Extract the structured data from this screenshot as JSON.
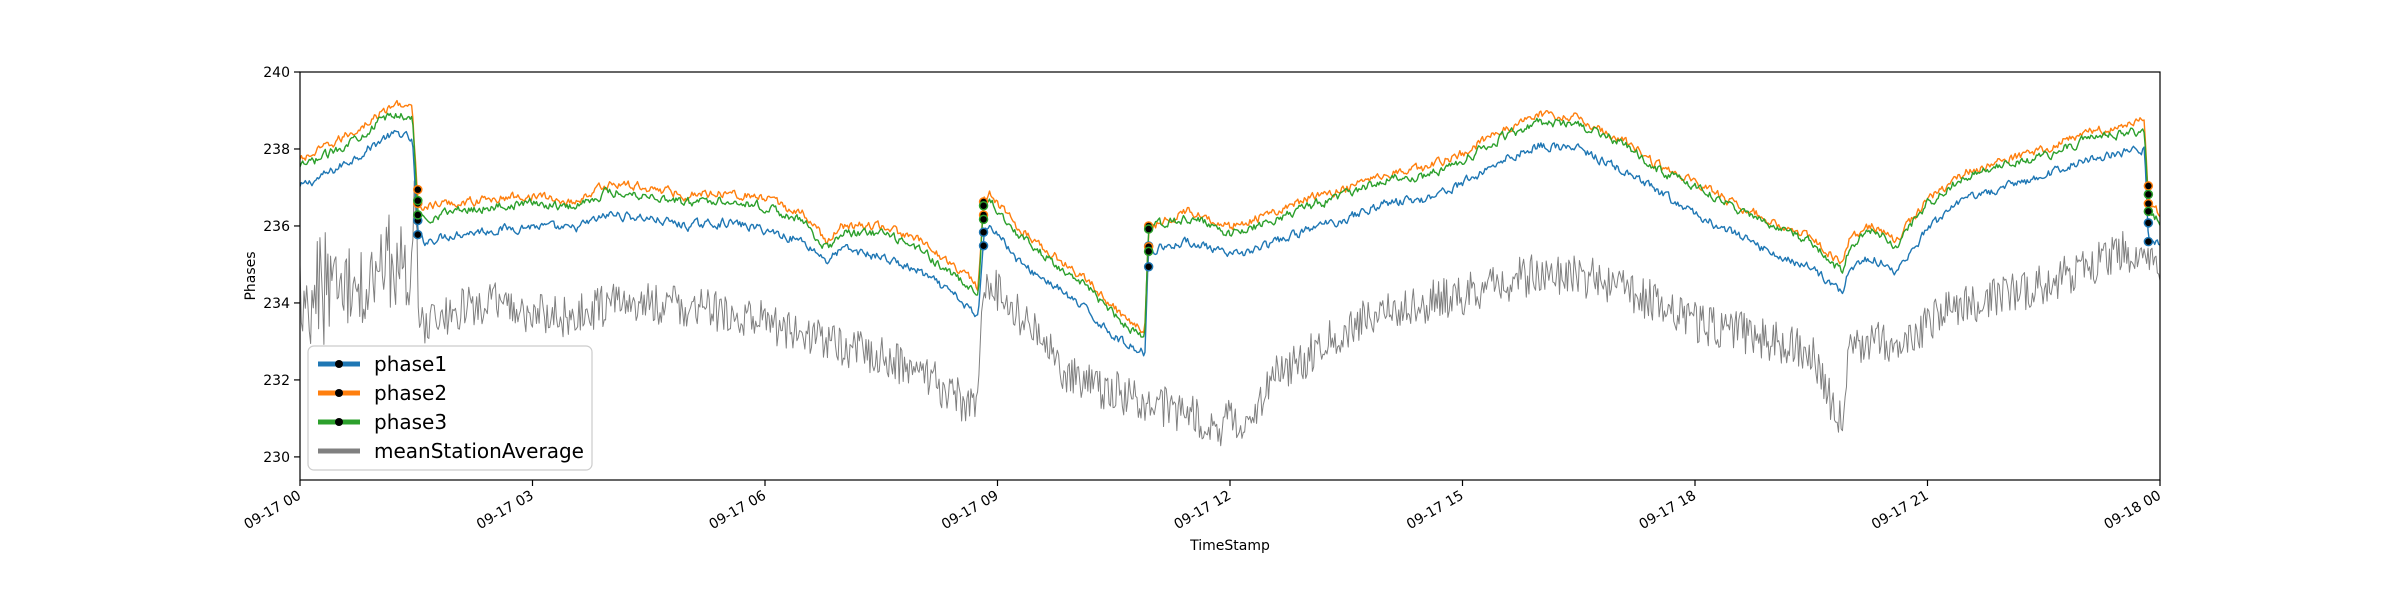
{
  "chart_data": {
    "type": "line",
    "title": "",
    "xlabel": "TimeStamp",
    "ylabel": "Phases",
    "x_range": [
      "09-17 00:00",
      "09-18 00:00"
    ],
    "ylim": [
      229.4,
      240
    ],
    "x_ticks": [
      {
        "hour": 0,
        "label": "09-17 00"
      },
      {
        "hour": 3,
        "label": "09-17 03"
      },
      {
        "hour": 6,
        "label": "09-17 06"
      },
      {
        "hour": 9,
        "label": "09-17 09"
      },
      {
        "hour": 12,
        "label": "09-17 12"
      },
      {
        "hour": 15,
        "label": "09-17 15"
      },
      {
        "hour": 18,
        "label": "09-17 18"
      },
      {
        "hour": 21,
        "label": "09-17 21"
      },
      {
        "hour": 24,
        "label": "09-18 00"
      }
    ],
    "y_ticks": [
      230,
      232,
      234,
      236,
      238,
      240
    ],
    "grid": false,
    "legend": "lower-left",
    "series": [
      {
        "name": "phase1",
        "color": "#1f77b4",
        "x": [
          0,
          0.4,
          0.8,
          1.1,
          1.3,
          1.45,
          1.52,
          1.6,
          2,
          2.5,
          3,
          3.5,
          4,
          4.5,
          5,
          5.5,
          6,
          6.5,
          6.8,
          7,
          7.5,
          8,
          8.5,
          8.75,
          8.82,
          8.9,
          9.3,
          9.7,
          10.2,
          10.6,
          10.9,
          10.95,
          11,
          11.5,
          12,
          12.5,
          13,
          13.5,
          14,
          14.5,
          15,
          15.5,
          16,
          16.5,
          17,
          17.5,
          18,
          18.5,
          19,
          19.5,
          19.9,
          20,
          20.3,
          20.6,
          21,
          21.5,
          22,
          22.5,
          23,
          23.5,
          23.8,
          23.85,
          24
        ],
        "y": [
          237.0,
          237.4,
          237.9,
          238.3,
          238.4,
          238.2,
          235.8,
          235.6,
          235.8,
          235.9,
          236.0,
          235.9,
          236.3,
          236.2,
          236.0,
          236.1,
          235.9,
          235.6,
          235.1,
          235.4,
          235.2,
          234.8,
          234.1,
          233.6,
          235.8,
          236.1,
          235.0,
          234.5,
          233.7,
          233.0,
          232.7,
          235.5,
          235.4,
          235.6,
          235.2,
          235.5,
          235.9,
          236.2,
          236.6,
          236.7,
          237.1,
          237.7,
          238.1,
          238.0,
          237.5,
          236.9,
          236.3,
          235.8,
          235.3,
          234.9,
          234.3,
          234.9,
          235.2,
          234.8,
          235.9,
          236.7,
          237.0,
          237.3,
          237.7,
          237.9,
          238.0,
          235.6,
          235.5
        ]
      },
      {
        "name": "phase2",
        "color": "#ff7f0e",
        "x": [
          0,
          0.4,
          0.8,
          1.1,
          1.3,
          1.45,
          1.52,
          1.6,
          2,
          2.5,
          3,
          3.5,
          4,
          4.5,
          5,
          5.5,
          6,
          6.5,
          6.8,
          7,
          7.5,
          8,
          8.5,
          8.75,
          8.82,
          8.9,
          9.3,
          9.7,
          10.2,
          10.6,
          10.9,
          10.95,
          11,
          11.5,
          12,
          12.5,
          13,
          13.5,
          14,
          14.5,
          15,
          15.5,
          16,
          16.5,
          17,
          17.5,
          18,
          18.5,
          19,
          19.5,
          19.9,
          20,
          20.3,
          20.6,
          21,
          21.5,
          22,
          22.5,
          23,
          23.5,
          23.8,
          23.85,
          24
        ],
        "y": [
          237.7,
          238.1,
          238.6,
          239.0,
          239.2,
          239.0,
          236.6,
          236.5,
          236.6,
          236.7,
          236.8,
          236.6,
          237.1,
          237.0,
          236.8,
          236.9,
          236.7,
          236.3,
          235.6,
          236.0,
          236.0,
          235.6,
          234.9,
          234.4,
          236.6,
          236.8,
          235.9,
          235.3,
          234.5,
          233.7,
          233.3,
          236.0,
          236.0,
          236.4,
          236.0,
          236.3,
          236.7,
          237.0,
          237.4,
          237.5,
          237.9,
          238.5,
          238.9,
          238.8,
          238.3,
          237.6,
          237.1,
          236.6,
          236.1,
          235.7,
          235.0,
          235.7,
          236.0,
          235.6,
          236.7,
          237.4,
          237.7,
          238.0,
          238.4,
          238.6,
          238.8,
          236.6,
          236.3
        ]
      },
      {
        "name": "phase3",
        "color": "#2ca02c",
        "x": [
          0,
          0.4,
          0.8,
          1.1,
          1.3,
          1.45,
          1.52,
          1.6,
          2,
          2.5,
          3,
          3.5,
          4,
          4.5,
          5,
          5.5,
          6,
          6.5,
          6.8,
          7,
          7.5,
          8,
          8.5,
          8.75,
          8.82,
          8.9,
          9.3,
          9.7,
          10.2,
          10.6,
          10.9,
          10.95,
          11,
          11.5,
          12,
          12.5,
          13,
          13.5,
          14,
          14.5,
          15,
          15.5,
          16,
          16.5,
          17,
          17.5,
          18,
          18.5,
          19,
          19.5,
          19.9,
          20,
          20.3,
          20.6,
          21,
          21.5,
          22,
          22.5,
          23,
          23.5,
          23.8,
          23.85,
          24
        ],
        "y": [
          237.5,
          237.9,
          238.4,
          238.8,
          238.9,
          238.8,
          236.3,
          236.2,
          236.4,
          236.5,
          236.6,
          236.5,
          236.9,
          236.8,
          236.6,
          236.7,
          236.5,
          236.1,
          235.4,
          235.8,
          235.8,
          235.4,
          234.6,
          234.2,
          236.5,
          236.7,
          235.7,
          235.1,
          234.3,
          233.5,
          233.1,
          235.9,
          236.0,
          236.2,
          235.8,
          236.1,
          236.5,
          236.8,
          237.2,
          237.3,
          237.7,
          238.3,
          238.7,
          238.6,
          238.2,
          237.5,
          237.0,
          236.5,
          236.0,
          235.6,
          234.8,
          235.5,
          235.9,
          235.5,
          236.6,
          237.3,
          237.6,
          237.8,
          238.2,
          238.4,
          238.5,
          236.4,
          236.1
        ]
      },
      {
        "name": "meanStationAverage",
        "color": "#808080",
        "x": [
          0,
          0.2,
          0.5,
          0.8,
          1.1,
          1.4,
          1.5,
          1.52,
          1.55,
          1.7,
          2,
          2.5,
          3,
          3.5,
          4,
          4.5,
          5,
          5.5,
          6,
          6.5,
          7,
          7.5,
          8,
          8.5,
          8.75,
          8.8,
          8.82,
          9,
          9.3,
          9.7,
          10,
          10.5,
          11,
          11.5,
          11.8,
          12,
          12.3,
          12.5,
          13,
          13.5,
          14,
          14.5,
          15,
          15.5,
          16,
          16.5,
          17,
          17.5,
          18,
          18.5,
          19,
          19.5,
          19.8,
          19.9,
          20,
          20.3,
          20.6,
          21,
          21.5,
          22,
          22.5,
          23,
          23.5,
          23.85,
          24
        ],
        "y": [
          233.8,
          234.5,
          234.2,
          234.7,
          235.0,
          235.0,
          236.3,
          234.2,
          233.4,
          233.5,
          233.8,
          234.0,
          233.7,
          233.6,
          234.0,
          234.0,
          233.9,
          233.7,
          233.5,
          233.2,
          232.9,
          232.6,
          232.2,
          231.5,
          231.3,
          234.6,
          234.4,
          234.3,
          233.7,
          232.6,
          232.0,
          231.7,
          231.4,
          231.1,
          230.7,
          231.0,
          230.9,
          232.0,
          232.6,
          233.3,
          233.8,
          234.0,
          234.2,
          234.5,
          234.8,
          234.7,
          234.5,
          234.0,
          233.5,
          233.3,
          233.0,
          232.7,
          231.2,
          231.0,
          232.8,
          233.1,
          232.7,
          233.5,
          234.0,
          234.2,
          234.5,
          234.9,
          235.3,
          235.4,
          235.1
        ]
      }
    ]
  }
}
